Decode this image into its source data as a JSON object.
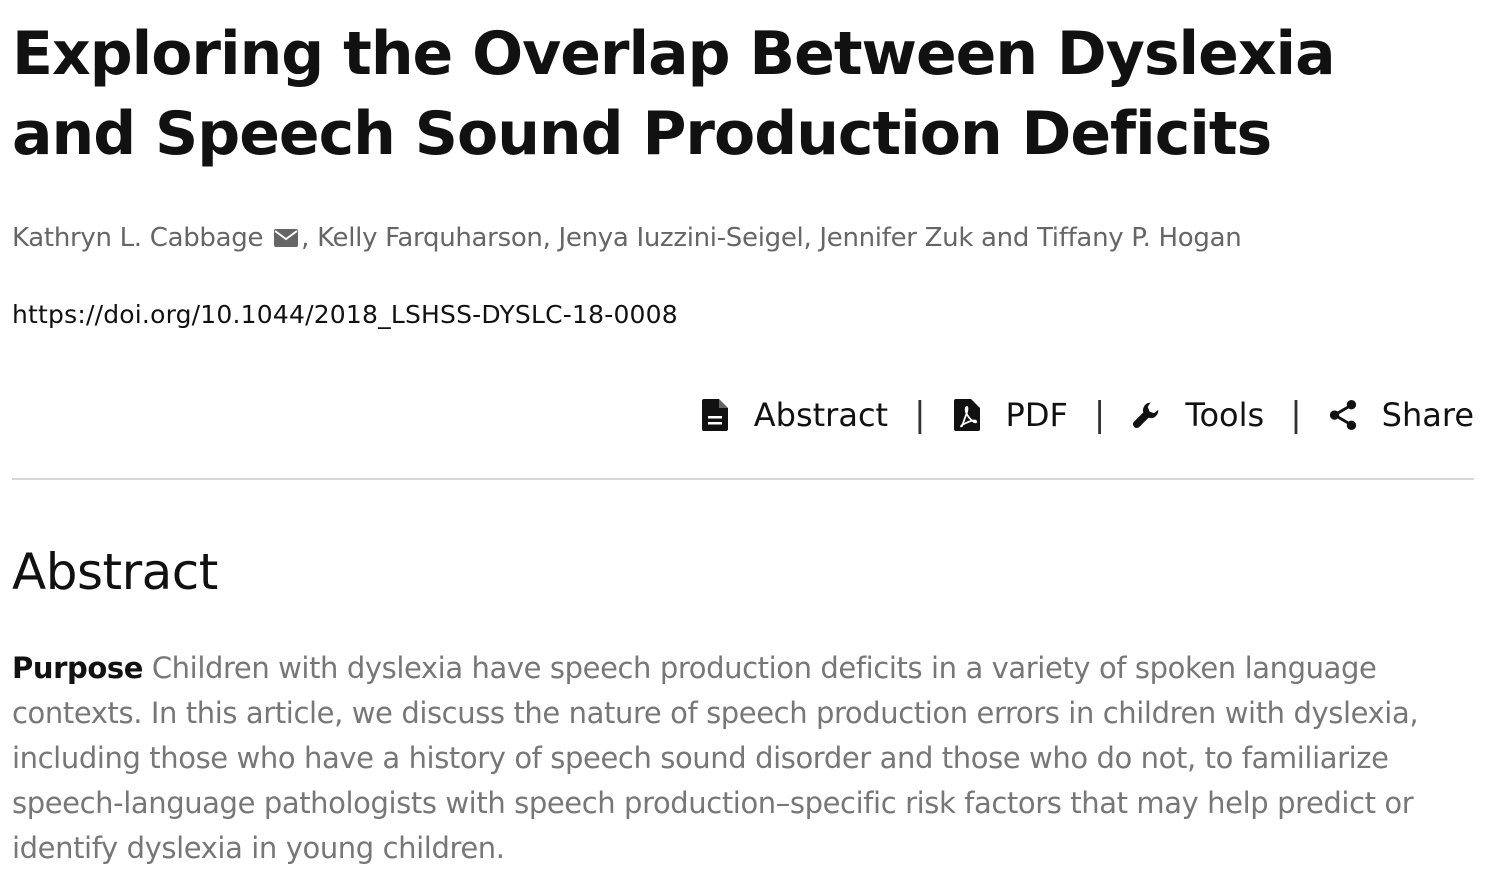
{
  "article": {
    "title": "Exploring the Overlap Between Dyslexia and Speech Sound Production Deficits",
    "authors": [
      "Kathryn L. Cabbage",
      ", Kelly Farquharson, Jenya Iuzzini-Seigel, Jennifer Zuk and Tiffany P. Hogan"
    ],
    "doi": "https://doi.org/10.1044/2018_LSHSS-DYSLC-18-0008"
  },
  "toolbar": {
    "items": [
      {
        "label": "Abstract",
        "icon": "document-icon"
      },
      {
        "label": "PDF",
        "icon": "pdf-icon"
      },
      {
        "label": "Tools",
        "icon": "wrench-icon"
      },
      {
        "label": "Share",
        "icon": "share-icon"
      }
    ],
    "separator": "|"
  },
  "abstract": {
    "heading": "Abstract",
    "purpose_label": "Purpose",
    "purpose_text": " Children with dyslexia have speech production deficits in a variety of spoken language contexts. In this article, we discuss the nature of speech production errors in children with dyslexia, including those who have a history of speech sound disorder and those who do not, to familiarize speech-language pathologists with speech production–specific risk factors that may help predict or identify dyslexia in young children."
  },
  "colors": {
    "text": "#111111",
    "muted_text": "#777777",
    "author_text": "#666666",
    "divider": "#d6d6d6"
  }
}
